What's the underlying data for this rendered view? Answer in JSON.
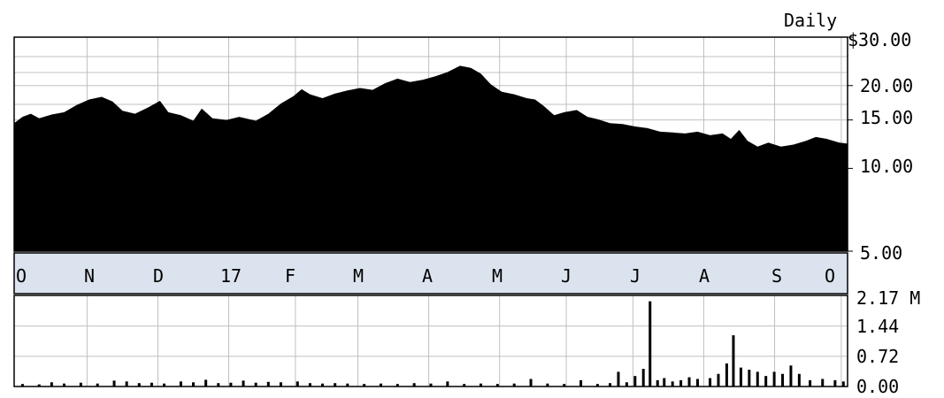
{
  "chart_data": [
    {
      "type": "area",
      "frequency_label": "Daily",
      "y_scale": "log",
      "ylim": [
        5,
        30
      ],
      "y_tick_labels": [
        "$30.00",
        "20.00",
        "15.00",
        "10.00",
        "5.00"
      ],
      "y_tick_values": [
        30,
        20,
        15,
        10,
        5
      ],
      "x_tick_labels": [
        "O",
        "N",
        "D",
        "17",
        "F",
        "M",
        "A",
        "M",
        "J",
        "J",
        "A",
        "S",
        "O"
      ],
      "grid": true,
      "fill_color": "#000000",
      "grid_color": "#c0c0c0",
      "band_color": "#dbe3ee",
      "price_points": [
        [
          0.0,
          14.6
        ],
        [
          0.01,
          15.4
        ],
        [
          0.02,
          15.8
        ],
        [
          0.03,
          15.2
        ],
        [
          0.045,
          15.7
        ],
        [
          0.06,
          16.0
        ],
        [
          0.075,
          17.0
        ],
        [
          0.09,
          17.8
        ],
        [
          0.105,
          18.2
        ],
        [
          0.118,
          17.5
        ],
        [
          0.13,
          16.2
        ],
        [
          0.145,
          15.8
        ],
        [
          0.16,
          16.6
        ],
        [
          0.175,
          17.6
        ],
        [
          0.185,
          16.0
        ],
        [
          0.2,
          15.6
        ],
        [
          0.215,
          14.9
        ],
        [
          0.225,
          16.5
        ],
        [
          0.238,
          15.2
        ],
        [
          0.255,
          15.0
        ],
        [
          0.27,
          15.4
        ],
        [
          0.29,
          14.9
        ],
        [
          0.305,
          15.8
        ],
        [
          0.32,
          17.2
        ],
        [
          0.335,
          18.3
        ],
        [
          0.345,
          19.4
        ],
        [
          0.355,
          18.6
        ],
        [
          0.37,
          18.0
        ],
        [
          0.385,
          18.7
        ],
        [
          0.4,
          19.2
        ],
        [
          0.415,
          19.6
        ],
        [
          0.43,
          19.3
        ],
        [
          0.445,
          20.4
        ],
        [
          0.46,
          21.2
        ],
        [
          0.475,
          20.6
        ],
        [
          0.49,
          21.0
        ],
        [
          0.505,
          21.6
        ],
        [
          0.52,
          22.4
        ],
        [
          0.535,
          23.6
        ],
        [
          0.548,
          23.2
        ],
        [
          0.56,
          22.1
        ],
        [
          0.572,
          20.2
        ],
        [
          0.585,
          19.0
        ],
        [
          0.6,
          18.6
        ],
        [
          0.615,
          18.0
        ],
        [
          0.625,
          17.8
        ],
        [
          0.635,
          16.9
        ],
        [
          0.648,
          15.6
        ],
        [
          0.66,
          16.0
        ],
        [
          0.675,
          16.3
        ],
        [
          0.688,
          15.4
        ],
        [
          0.7,
          15.1
        ],
        [
          0.715,
          14.6
        ],
        [
          0.73,
          14.5
        ],
        [
          0.745,
          14.2
        ],
        [
          0.76,
          14.0
        ],
        [
          0.775,
          13.6
        ],
        [
          0.79,
          13.5
        ],
        [
          0.805,
          13.4
        ],
        [
          0.82,
          13.6
        ],
        [
          0.835,
          13.2
        ],
        [
          0.85,
          13.4
        ],
        [
          0.86,
          12.8
        ],
        [
          0.87,
          13.8
        ],
        [
          0.88,
          12.6
        ],
        [
          0.892,
          12.0
        ],
        [
          0.905,
          12.4
        ],
        [
          0.92,
          12.0
        ],
        [
          0.935,
          12.2
        ],
        [
          0.95,
          12.6
        ],
        [
          0.962,
          13.0
        ],
        [
          0.975,
          12.8
        ],
        [
          0.99,
          12.4
        ],
        [
          1.0,
          12.3
        ]
      ]
    },
    {
      "type": "bar",
      "series_role": "volume",
      "ylim": [
        0,
        2.17
      ],
      "y_tick_labels": [
        "2.17 M",
        "1.44",
        "0.72",
        "0.00"
      ],
      "y_tick_values": [
        2.17,
        1.44,
        0.72,
        0.0
      ],
      "bar_color": "#000000",
      "volume_points": [
        [
          0.01,
          0.06
        ],
        [
          0.03,
          0.05
        ],
        [
          0.045,
          0.1
        ],
        [
          0.06,
          0.07
        ],
        [
          0.08,
          0.09
        ],
        [
          0.1,
          0.07
        ],
        [
          0.12,
          0.14
        ],
        [
          0.135,
          0.12
        ],
        [
          0.15,
          0.08
        ],
        [
          0.165,
          0.09
        ],
        [
          0.18,
          0.07
        ],
        [
          0.2,
          0.12
        ],
        [
          0.215,
          0.1
        ],
        [
          0.23,
          0.16
        ],
        [
          0.245,
          0.08
        ],
        [
          0.26,
          0.09
        ],
        [
          0.275,
          0.14
        ],
        [
          0.29,
          0.09
        ],
        [
          0.305,
          0.11
        ],
        [
          0.32,
          0.1
        ],
        [
          0.34,
          0.12
        ],
        [
          0.355,
          0.08
        ],
        [
          0.37,
          0.07
        ],
        [
          0.385,
          0.08
        ],
        [
          0.4,
          0.07
        ],
        [
          0.42,
          0.06
        ],
        [
          0.44,
          0.07
        ],
        [
          0.46,
          0.06
        ],
        [
          0.48,
          0.08
        ],
        [
          0.5,
          0.07
        ],
        [
          0.52,
          0.12
        ],
        [
          0.54,
          0.06
        ],
        [
          0.56,
          0.07
        ],
        [
          0.58,
          0.06
        ],
        [
          0.6,
          0.07
        ],
        [
          0.62,
          0.18
        ],
        [
          0.64,
          0.07
        ],
        [
          0.66,
          0.06
        ],
        [
          0.68,
          0.15
        ],
        [
          0.7,
          0.06
        ],
        [
          0.715,
          0.08
        ],
        [
          0.725,
          0.35
        ],
        [
          0.735,
          0.1
        ],
        [
          0.745,
          0.25
        ],
        [
          0.755,
          0.42
        ],
        [
          0.763,
          2.03
        ],
        [
          0.772,
          0.15
        ],
        [
          0.78,
          0.2
        ],
        [
          0.79,
          0.12
        ],
        [
          0.8,
          0.15
        ],
        [
          0.81,
          0.22
        ],
        [
          0.82,
          0.18
        ],
        [
          0.835,
          0.2
        ],
        [
          0.845,
          0.3
        ],
        [
          0.855,
          0.55
        ],
        [
          0.863,
          1.22
        ],
        [
          0.872,
          0.45
        ],
        [
          0.882,
          0.4
        ],
        [
          0.892,
          0.35
        ],
        [
          0.902,
          0.25
        ],
        [
          0.912,
          0.35
        ],
        [
          0.922,
          0.3
        ],
        [
          0.932,
          0.5
        ],
        [
          0.942,
          0.3
        ],
        [
          0.955,
          0.15
        ],
        [
          0.97,
          0.18
        ],
        [
          0.985,
          0.15
        ],
        [
          0.995,
          0.12
        ]
      ]
    }
  ]
}
